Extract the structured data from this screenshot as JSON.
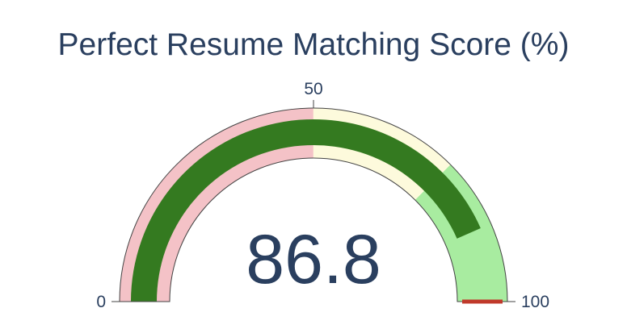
{
  "chart_data": {
    "type": "gauge",
    "title": "Perfect Resume Matching Score (%)",
    "value": 86.8,
    "value_label": "86.8",
    "range": [
      0,
      100
    ],
    "ticks": [
      {
        "value": 0,
        "label": "0"
      },
      {
        "value": 50,
        "label": "50"
      },
      {
        "value": 100,
        "label": "100"
      }
    ],
    "steps": [
      {
        "range": [
          0,
          50
        ],
        "color": "#f4c2c7"
      },
      {
        "range": [
          50,
          75
        ],
        "color": "#fdfadc"
      },
      {
        "range": [
          75,
          100
        ],
        "color": "#a8eca0"
      }
    ],
    "bar_color": "#347a20",
    "threshold": {
      "value": 100,
      "color": "#c0392b"
    }
  }
}
